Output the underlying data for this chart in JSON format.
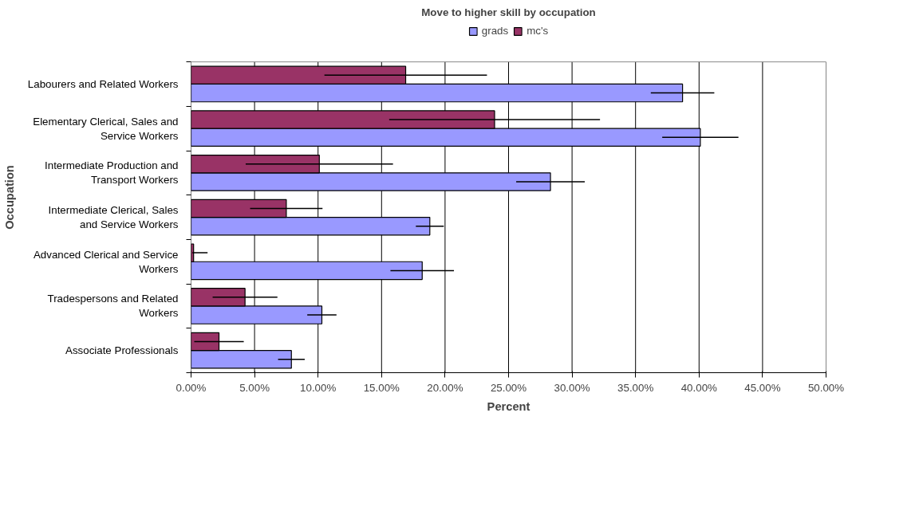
{
  "chart_data": {
    "type": "bar",
    "orientation": "horizontal",
    "title": "Move to higher skill by occupation",
    "xlabel": "Percent",
    "ylabel": "Occupation",
    "categories": [
      "Labourers and Related Workers",
      "Elementary Clerical, Sales and Service Workers",
      "Intermediate Production and Transport Workers",
      "Intermediate Clerical, Sales and Service Workers",
      "Advanced Clerical and Service Workers",
      "Tradespersons and Related Workers",
      "Associate Professionals"
    ],
    "series": [
      {
        "name": "grads",
        "color": "#9999ff",
        "values": [
          38.7,
          40.1,
          28.3,
          18.8,
          18.2,
          10.3,
          7.9
        ],
        "errors": [
          2.5,
          3.0,
          2.7,
          1.1,
          2.5,
          1.15,
          1.05
        ]
      },
      {
        "name": "mc's",
        "color": "#993366",
        "values": [
          16.9,
          23.9,
          10.1,
          7.5,
          0.2,
          4.25,
          2.2
        ],
        "errors": [
          6.4,
          8.3,
          5.8,
          2.85,
          [
            0.1,
            1.3
          ],
          2.55,
          1.95
        ]
      }
    ],
    "xlim": [
      0,
      50
    ],
    "xticks": [
      {
        "value": 0,
        "label": "0.00%"
      },
      {
        "value": 5,
        "label": "5.00%"
      },
      {
        "value": 10,
        "label": "10.00%"
      },
      {
        "value": 15,
        "label": "15.00%"
      },
      {
        "value": 20,
        "label": "20.00%"
      },
      {
        "value": 25,
        "label": "25.00%"
      },
      {
        "value": 30,
        "label": "30.00%"
      },
      {
        "value": 35,
        "label": "35.00%"
      },
      {
        "value": 40,
        "label": "40.00%"
      },
      {
        "value": 45,
        "label": "45.00%"
      },
      {
        "value": 50,
        "label": "50.00%"
      }
    ],
    "grid": "x",
    "legend": "top"
  }
}
